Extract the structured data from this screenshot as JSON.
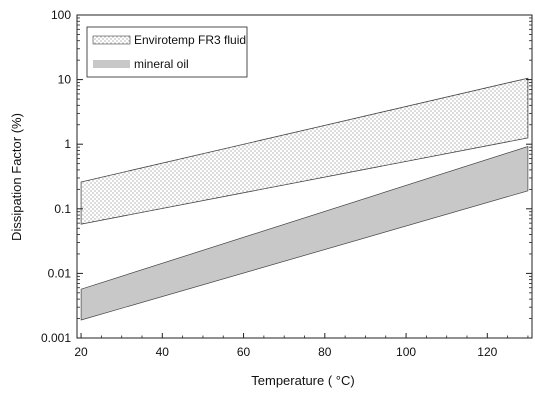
{
  "chart_data": {
    "type": "area",
    "title": "",
    "xlabel": "Temperature ( °C)",
    "ylabel": "Dissipation Factor (%)",
    "x_scale": "linear",
    "y_scale": "log",
    "xlim": [
      19,
      131
    ],
    "ylim": [
      0.001,
      100
    ],
    "x_ticks": [
      20,
      40,
      60,
      80,
      100,
      120
    ],
    "x_tick_labels": [
      "20",
      "40",
      "60",
      "80",
      "100",
      "120"
    ],
    "y_ticks": [
      0.001,
      0.01,
      0.1,
      1,
      10,
      100
    ],
    "y_tick_labels": [
      "0.001",
      "0.01",
      "0.1",
      "1",
      "10",
      "100"
    ],
    "grid": false,
    "legend_position": "top-left",
    "series": [
      {
        "name": "Envirotemp FR3 fluid",
        "fill": "dotted",
        "x": [
          20,
          130
        ],
        "upper": [
          0.26,
          10.5
        ],
        "lower": [
          0.058,
          1.25
        ]
      },
      {
        "name": "mineral oil",
        "fill": "gray",
        "color": "#c8c8c8",
        "x": [
          20,
          130
        ],
        "upper": [
          0.0057,
          0.92
        ],
        "lower": [
          0.0019,
          0.19
        ]
      }
    ]
  }
}
